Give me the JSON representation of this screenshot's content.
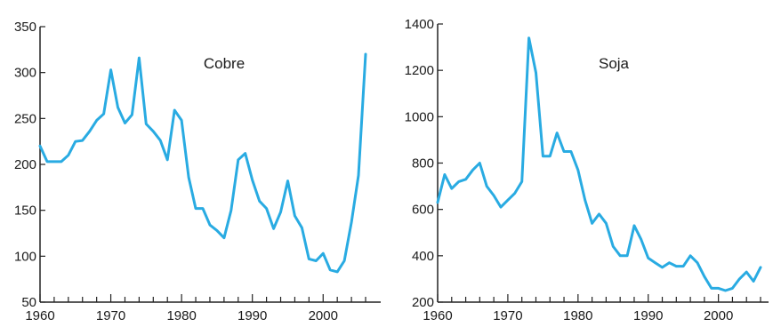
{
  "chart_data": [
    {
      "type": "line",
      "title": "Cobre",
      "xlabel": "",
      "ylabel": "",
      "xlim": [
        1960,
        2006
      ],
      "ylim": [
        50,
        350
      ],
      "x_ticks": [
        1960,
        1970,
        1980,
        1990,
        2000
      ],
      "x_tick_labels": [
        "1960",
        "1970",
        "1980",
        "1990",
        "2000"
      ],
      "y_ticks": [
        50,
        100,
        150,
        200,
        250,
        300,
        350
      ],
      "y_tick_labels": [
        "50",
        "100",
        "150",
        "200",
        "250",
        "300",
        "350"
      ],
      "grid": false,
      "line_color": "#29abe2",
      "series": [
        {
          "x": [
            1960,
            1961,
            1962,
            1963,
            1964,
            1965,
            1966,
            1967,
            1968,
            1969,
            1970,
            1971,
            1972,
            1973,
            1974,
            1975,
            1976,
            1977,
            1978,
            1979,
            1980,
            1981,
            1982,
            1983,
            1984,
            1985,
            1986,
            1987,
            1988,
            1989,
            1990,
            1991,
            1992,
            1993,
            1994,
            1995,
            1996,
            1997,
            1998,
            1999,
            2000,
            2001,
            2002,
            2003,
            2004,
            2005,
            2006
          ],
          "y": [
            220,
            203,
            203,
            203,
            210,
            225,
            226,
            236,
            248,
            255,
            303,
            262,
            245,
            254,
            316,
            244,
            236,
            226,
            205,
            259,
            248,
            186,
            152,
            152,
            134,
            128,
            120,
            150,
            205,
            212,
            183,
            160,
            152,
            130,
            148,
            182,
            144,
            131,
            97,
            95,
            103,
            85,
            83,
            95,
            137,
            188,
            320
          ]
        }
      ]
    },
    {
      "type": "line",
      "title": "Soja",
      "xlabel": "",
      "ylabel": "",
      "xlim": [
        1960,
        2006
      ],
      "ylim": [
        200,
        1400
      ],
      "x_ticks": [
        1960,
        1970,
        1980,
        1990,
        2000
      ],
      "x_tick_labels": [
        "1960",
        "1970",
        "1980",
        "1990",
        "2000"
      ],
      "y_ticks": [
        200,
        400,
        600,
        800,
        1000,
        1200,
        1400
      ],
      "y_tick_labels": [
        "200",
        "400",
        "600",
        "800",
        "1000",
        "1200",
        "1400"
      ],
      "grid": false,
      "line_color": "#29abe2",
      "series": [
        {
          "x": [
            1960,
            1961,
            1962,
            1963,
            1964,
            1965,
            1966,
            1967,
            1968,
            1969,
            1970,
            1971,
            1972,
            1973,
            1974,
            1975,
            1976,
            1977,
            1978,
            1979,
            1980,
            1981,
            1982,
            1983,
            1984,
            1985,
            1986,
            1987,
            1988,
            1989,
            1990,
            1991,
            1992,
            1993,
            1994,
            1995,
            1996,
            1997,
            1998,
            1999,
            2000,
            2001,
            2002,
            2003,
            2004,
            2005,
            2006
          ],
          "y": [
            630,
            750,
            690,
            720,
            730,
            770,
            800,
            700,
            660,
            610,
            640,
            670,
            720,
            1340,
            1190,
            830,
            830,
            930,
            850,
            850,
            770,
            640,
            540,
            580,
            540,
            440,
            400,
            400,
            530,
            470,
            390,
            370,
            350,
            370,
            355,
            355,
            400,
            370,
            310,
            260,
            260,
            250,
            260,
            300,
            330,
            290,
            350
          ]
        }
      ]
    }
  ]
}
